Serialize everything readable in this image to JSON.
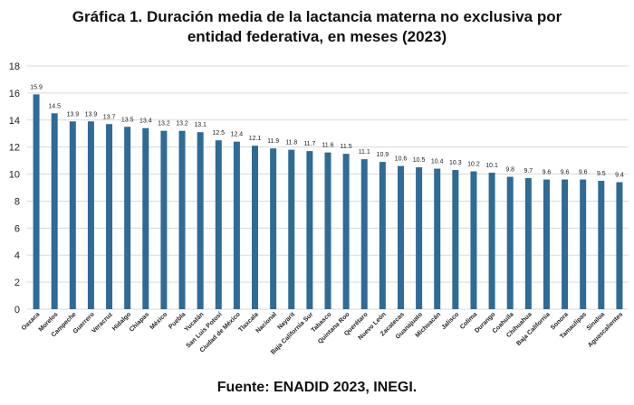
{
  "header": {
    "title_line1": "Gráfica 1. Duración media de la lactancia materna no exclusiva  por",
    "title_line2": "entidad federativa, en meses (2023)"
  },
  "footer": {
    "source": "Fuente: ENADID 2023, INEGI."
  },
  "chart_data": {
    "type": "bar",
    "title": "Gráfica 1. Duración media de la lactancia materna no exclusiva  por entidad federativa, en meses (2023)",
    "xlabel": "",
    "ylabel": "",
    "ylim": [
      0,
      18
    ],
    "yticks": [
      0,
      2,
      4,
      6,
      8,
      10,
      12,
      14,
      16,
      18
    ],
    "grid": true,
    "bar_color": "#2e6b96",
    "categories": [
      "Oaxaca",
      "Morelos",
      "Campeche",
      "Guerrero",
      "Veracruz",
      "Hidalgo",
      "Chiapas",
      "México",
      "Puebla",
      "Yucatán",
      "San Luis Potosí",
      "Ciudad de México",
      "Tlaxcala",
      "Nacional",
      "Nayarit",
      "Baja California Sur",
      "Tabasco",
      "Quintana Roo",
      "Querétaro",
      "Nuevo León",
      "Zacatecas",
      "Guanajuato",
      "Michoacán",
      "Jalisco",
      "Colima",
      "Durango",
      "Coahuila",
      "Chihuahua",
      "Baja California",
      "Sonora",
      "Tamaulipas",
      "Sinaloa",
      "Aguascalientes"
    ],
    "values": [
      15.9,
      14.5,
      13.9,
      13.9,
      13.7,
      13.5,
      13.4,
      13.2,
      13.2,
      13.1,
      12.5,
      12.4,
      12.1,
      11.9,
      11.8,
      11.7,
      11.6,
      11.5,
      11.1,
      10.9,
      10.6,
      10.5,
      10.4,
      10.3,
      10.2,
      10.1,
      9.8,
      9.7,
      9.6,
      9.6,
      9.6,
      9.5,
      9.4
    ],
    "value_labels": [
      "15.9",
      "14.5",
      "13.9",
      "13.9",
      "13.7",
      "13.5",
      "13.4",
      "13.2",
      "13.2",
      "13.1",
      "12.5",
      "12.4",
      "12.1",
      "11.9",
      "11.8",
      "11.7",
      "11.6",
      "11.5",
      "11.1",
      "10.9",
      "10.6",
      "10.5",
      "10.4",
      "10.3",
      "10.2",
      "10.1",
      "9.8",
      "9.7",
      "9.6",
      "9.6",
      "9.6",
      "9.5",
      "9.4"
    ]
  }
}
